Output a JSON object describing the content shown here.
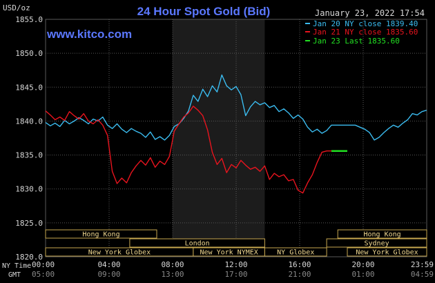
{
  "header": {
    "title": "24 Hour Spot Gold (Bid)",
    "datetime": "January 23, 2022 17:54",
    "y_unit": "USD/oz",
    "website": "www.kitco.com"
  },
  "colors": {
    "background": "#000000",
    "plot_bg": "#000000",
    "highlight_bg": "#1c1c1c",
    "grid": "#5a5a5a",
    "axis_text": "#d8d8d8",
    "title": "#5b78ff",
    "series_blue": "#3bbcf0",
    "series_red": "#e8141e",
    "series_green": "#22e022",
    "session_bg": "#000000",
    "session_border": "#c8a850",
    "session_text": "#f0d890"
  },
  "legend": [
    {
      "label": "Jan 20 NY close 1839.40",
      "color": "#3bbcf0"
    },
    {
      "label": "Jan 21 NY close 1835.60",
      "color": "#e8141e"
    },
    {
      "label": "Jan 23 Last 1835.60",
      "color": "#22e022"
    }
  ],
  "axis_labels": {
    "row1_label": "NY Time",
    "row2_label": "GMT"
  },
  "chart_data": {
    "type": "line",
    "title": "24 Hour Spot Gold (Bid)",
    "ylabel": "USD/oz",
    "ylim": [
      1820,
      1855
    ],
    "xlim": [
      0,
      24
    ],
    "yticks": [
      "1855.0",
      "1850.0",
      "1845.0",
      "1840.0",
      "1835.0",
      "1830.0",
      "1825.0",
      "1820.0"
    ],
    "x_ticks_ny": [
      "00:00",
      "04:00",
      "08:00",
      "12:00",
      "16:00",
      "20:00",
      "23:59"
    ],
    "x_ticks_gmt": [
      "05:00",
      "09:00",
      "13:00",
      "17:00",
      "21:00",
      "01:00",
      "04:59"
    ],
    "x_tick_positions": [
      0,
      4,
      8,
      12,
      16,
      20,
      24
    ],
    "highlight_range": [
      8.0,
      13.8
    ],
    "grid": true,
    "legend_position": "top-right",
    "series": [
      {
        "name": "Jan 20 NY close 1839.40",
        "color": "#3bbcf0",
        "x": [
          0,
          0.3,
          0.6,
          0.9,
          1.2,
          1.5,
          1.8,
          2.1,
          2.4,
          2.7,
          3.0,
          3.3,
          3.6,
          3.9,
          4.2,
          4.5,
          4.8,
          5.1,
          5.4,
          5.7,
          6.0,
          6.3,
          6.6,
          6.9,
          7.2,
          7.5,
          7.8,
          8.1,
          8.4,
          8.7,
          9.0,
          9.3,
          9.6,
          9.9,
          10.2,
          10.5,
          10.8,
          11.1,
          11.4,
          11.7,
          12.0,
          12.3,
          12.6,
          12.9,
          13.2,
          13.5,
          13.8,
          14.1,
          14.4,
          14.7,
          15.0,
          15.3,
          15.6,
          15.9,
          16.2,
          16.5,
          16.8,
          17.1,
          17.4,
          17.7,
          18.0,
          18.3,
          18.6,
          18.9,
          19.2,
          19.5,
          19.8,
          20.1,
          20.4,
          20.7,
          21.0,
          21.3,
          21.6,
          21.9,
          22.2,
          22.5,
          22.8,
          23.1,
          23.4,
          23.7,
          23.99
        ],
        "y": [
          1839.8,
          1839.3,
          1839.7,
          1839.2,
          1840.1,
          1839.6,
          1840.0,
          1840.5,
          1840.1,
          1839.6,
          1840.3,
          1840.0,
          1840.6,
          1839.4,
          1838.9,
          1839.6,
          1838.8,
          1838.3,
          1838.9,
          1838.5,
          1838.2,
          1837.6,
          1838.4,
          1837.3,
          1837.7,
          1837.2,
          1837.9,
          1839.2,
          1839.6,
          1840.4,
          1841.5,
          1843.8,
          1842.9,
          1844.7,
          1843.6,
          1845.2,
          1844.3,
          1846.8,
          1845.2,
          1844.6,
          1845.1,
          1843.9,
          1840.8,
          1842.1,
          1842.9,
          1842.4,
          1842.7,
          1842.0,
          1842.3,
          1841.4,
          1841.8,
          1841.2,
          1840.4,
          1840.9,
          1840.3,
          1839.1,
          1838.4,
          1838.8,
          1838.2,
          1838.6,
          1839.4,
          1839.4,
          1839.4,
          1839.4,
          1839.4,
          1839.4,
          1839.1,
          1838.8,
          1838.3,
          1837.2,
          1837.6,
          1838.3,
          1838.9,
          1839.4,
          1839.1,
          1839.7,
          1840.2,
          1841.1,
          1840.9,
          1841.4,
          1841.6
        ]
      },
      {
        "name": "Jan 21 NY close 1835.60",
        "color": "#e8141e",
        "x": [
          0,
          0.3,
          0.6,
          0.9,
          1.2,
          1.5,
          1.8,
          2.1,
          2.4,
          2.7,
          3.0,
          3.3,
          3.6,
          3.9,
          4.2,
          4.5,
          4.8,
          5.1,
          5.4,
          5.7,
          6.0,
          6.3,
          6.6,
          6.9,
          7.2,
          7.5,
          7.8,
          8.1,
          8.4,
          8.7,
          9.0,
          9.3,
          9.6,
          9.9,
          10.2,
          10.5,
          10.8,
          11.1,
          11.4,
          11.7,
          12.0,
          12.3,
          12.6,
          12.9,
          13.2,
          13.5,
          13.8,
          14.1,
          14.4,
          14.7,
          15.0,
          15.3,
          15.6,
          15.9,
          16.2,
          16.5,
          16.8,
          17.1,
          17.4,
          17.7,
          18.0
        ],
        "y": [
          1841.5,
          1840.9,
          1840.2,
          1840.6,
          1840.1,
          1841.4,
          1840.8,
          1840.3,
          1841.1,
          1840.0,
          1839.6,
          1840.2,
          1839.4,
          1837.9,
          1832.6,
          1830.8,
          1831.6,
          1830.9,
          1832.4,
          1833.4,
          1834.2,
          1833.5,
          1834.6,
          1833.2,
          1834.1,
          1833.6,
          1834.8,
          1838.5,
          1839.6,
          1840.6,
          1841.2,
          1842.2,
          1841.6,
          1840.8,
          1838.7,
          1835.4,
          1833.6,
          1834.5,
          1832.4,
          1833.6,
          1833.1,
          1834.2,
          1833.5,
          1832.9,
          1833.2,
          1832.6,
          1833.4,
          1831.4,
          1832.3,
          1831.8,
          1832.1,
          1831.2,
          1831.4,
          1829.8,
          1829.4,
          1830.9,
          1832.1,
          1833.9,
          1835.4,
          1835.6,
          1835.6
        ]
      },
      {
        "name": "Jan 23 Last 1835.60",
        "color": "#22e022",
        "x": [
          18.0,
          19.0
        ],
        "y": [
          1835.6,
          1835.6
        ]
      }
    ],
    "sessions": [
      {
        "name": "Hong Kong",
        "start": 0,
        "end": 7.0,
        "row": 0
      },
      {
        "name": "London",
        "start": 5.3,
        "end": 13.8,
        "row": 1
      },
      {
        "name": "New York Globex",
        "start": 0,
        "end": 9.3,
        "row": 2
      },
      {
        "name": "New York NYMEX",
        "start": 9.3,
        "end": 13.8,
        "row": 2
      },
      {
        "name": "NY Globex",
        "start": 13.8,
        "end": 17.7,
        "row": 2
      },
      {
        "name": "Hong Kong",
        "start": 18.4,
        "end": 24,
        "row": 0
      },
      {
        "name": "Sydney",
        "start": 17.7,
        "end": 24,
        "row": 1
      },
      {
        "name": "New York Globex",
        "start": 19.0,
        "end": 24,
        "row": 2
      }
    ]
  }
}
